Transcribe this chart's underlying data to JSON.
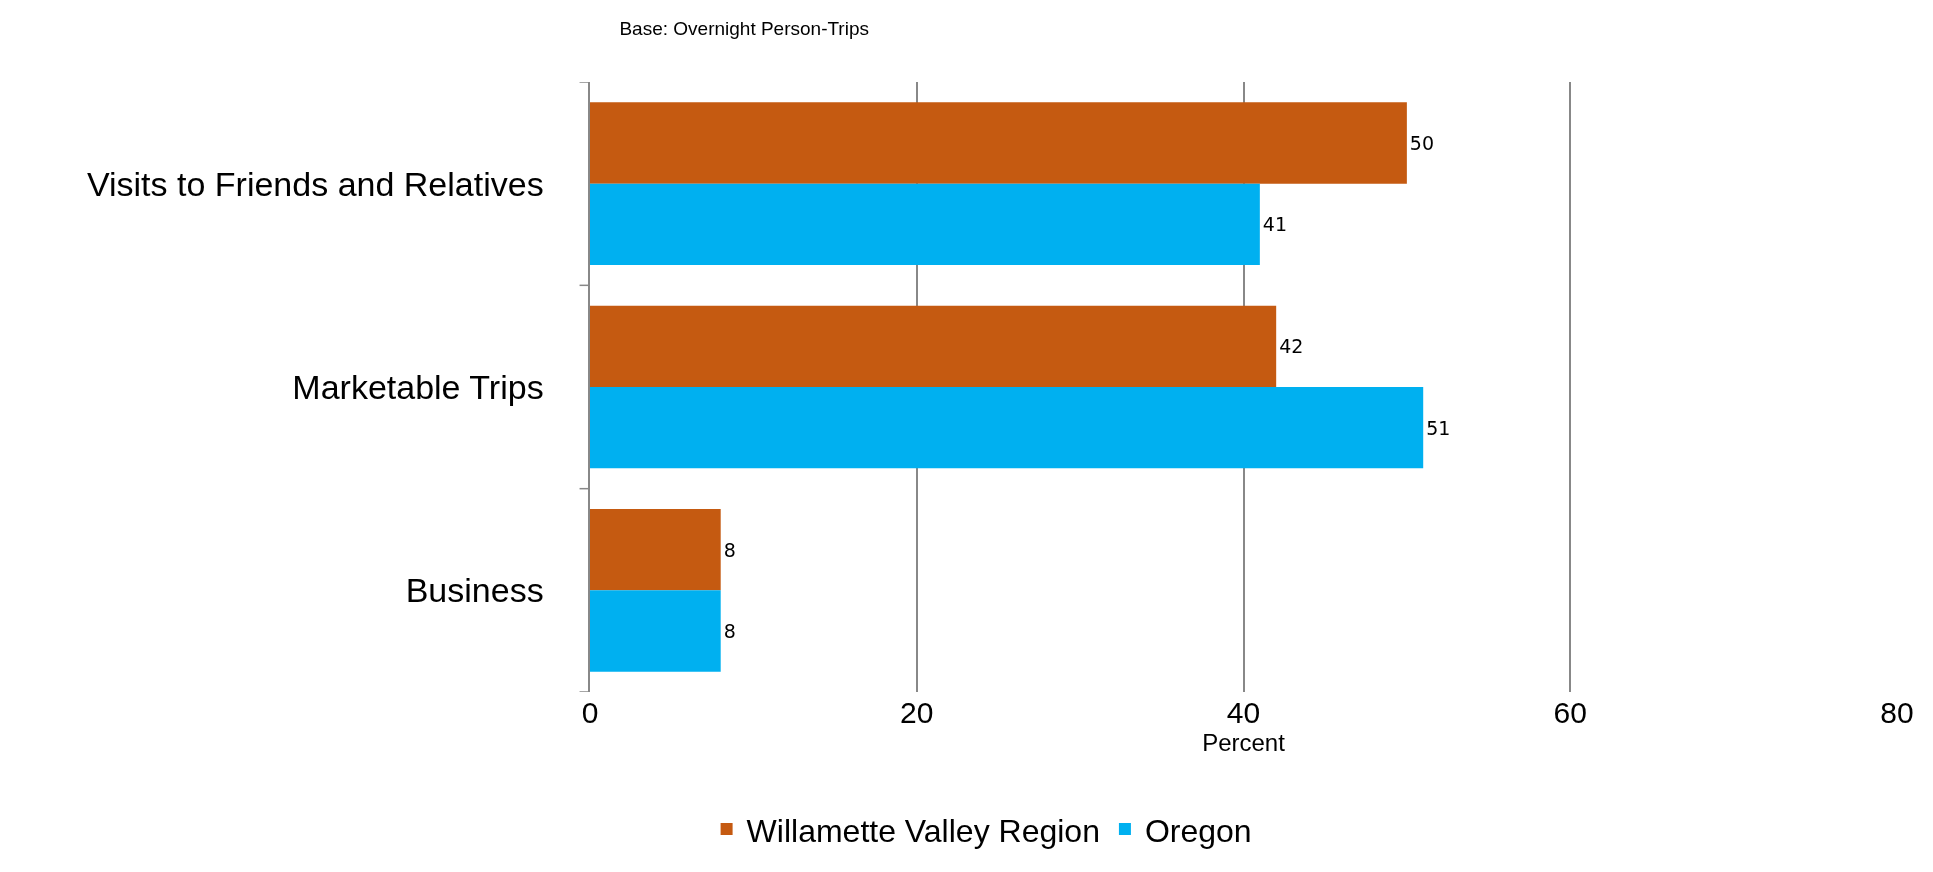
{
  "chart_data": {
    "type": "bar",
    "orientation": "horizontal",
    "title": "Base: Overnight Person-Trips",
    "xlabel": "Percent",
    "categories": [
      "Visits to Friends and Relatives",
      "Marketable Trips",
      "Business"
    ],
    "series": [
      {
        "name": "Willamette Valley Region",
        "color": "#c55a11",
        "values": [
          50,
          42,
          8
        ]
      },
      {
        "name": "Oregon",
        "color": "#00b0f0",
        "values": [
          41,
          51,
          8
        ]
      }
    ],
    "xlim": [
      0,
      80
    ],
    "xticks": [
      0,
      20,
      40,
      60,
      80
    ],
    "grid": "x",
    "legend": "bottom",
    "data_labels": true
  }
}
